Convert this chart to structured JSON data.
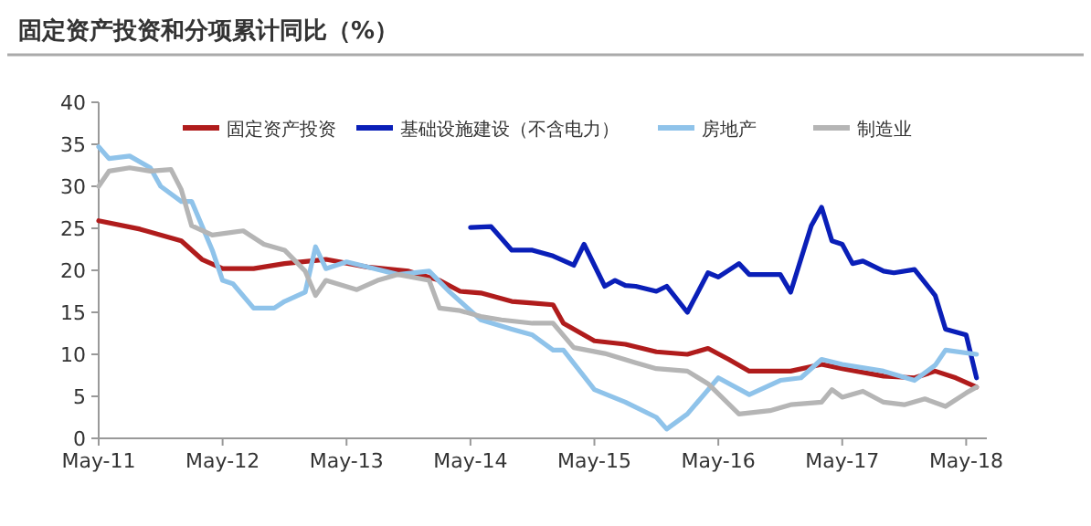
{
  "chart_data": {
    "type": "line",
    "title": "固定资产投资和分项累计同比（%）",
    "legend": "top",
    "marker": "none",
    "line_style": "solid",
    "grid": false,
    "xlim": [
      "2011-05",
      "2018-07"
    ],
    "xticks": [
      {
        "value": "2011-05",
        "label": "May-11"
      },
      {
        "value": "2012-05",
        "label": "May-12"
      },
      {
        "value": "2013-05",
        "label": "May-13"
      },
      {
        "value": "2014-05",
        "label": "May-14"
      },
      {
        "value": "2015-05",
        "label": "May-15"
      },
      {
        "value": "2016-05",
        "label": "May-16"
      },
      {
        "value": "2017-05",
        "label": "May-17"
      },
      {
        "value": "2018-05",
        "label": "May-18"
      }
    ],
    "ylim": [
      0,
      40
    ],
    "yticks": [
      0,
      5,
      10,
      15,
      20,
      25,
      30,
      35,
      40
    ],
    "series": [
      {
        "name": "固定资产投资",
        "color": "#b01c1c",
        "x": [
          "2011-05",
          "2011-09",
          "2012-01",
          "2012-03",
          "2012-05",
          "2012-08",
          "2012-11",
          "2013-03",
          "2013-07",
          "2013-11",
          "2014-02",
          "2014-04",
          "2014-06",
          "2014-09",
          "2014-11",
          "2015-01",
          "2015-02",
          "2015-05",
          "2015-08",
          "2015-11",
          "2016-02",
          "2016-04",
          "2016-06",
          "2016-08",
          "2016-12",
          "2017-03",
          "2017-05",
          "2017-09",
          "2017-12",
          "2018-02",
          "2018-04",
          "2018-06"
        ],
        "values": [
          25.9,
          24.9,
          23.5,
          21.3,
          20.2,
          20.2,
          20.8,
          21.3,
          20.4,
          19.9,
          18.8,
          17.5,
          17.3,
          16.3,
          16.1,
          15.9,
          13.7,
          11.6,
          11.2,
          10.3,
          10,
          10.7,
          9.4,
          8,
          8,
          8.8,
          8.3,
          7.4,
          7.2,
          8,
          7.2,
          6.1
        ]
      },
      {
        "name": "基础设施建设（不含电力）",
        "color": "#0a1fb8",
        "x": [
          "2014-05",
          "2014-07",
          "2014-09",
          "2014-11",
          "2015-01",
          "2015-03",
          "2015-04",
          "2015-06",
          "2015-07",
          "2015-08",
          "2015-09",
          "2015-11",
          "2015-12",
          "2016-02",
          "2016-04",
          "2016-05",
          "2016-07",
          "2016-08",
          "2016-11",
          "2016-12",
          "2017-02",
          "2017-03",
          "2017-04",
          "2017-05",
          "2017-06",
          "2017-07",
          "2017-09",
          "2017-10",
          "2017-12",
          "2018-02",
          "2018-03",
          "2018-05",
          "2018-06"
        ],
        "values": [
          25.1,
          25.2,
          22.4,
          22.4,
          21.7,
          20.6,
          23.1,
          18.1,
          18.8,
          18.2,
          18.1,
          17.5,
          18.1,
          15,
          19.7,
          19.2,
          20.8,
          19.5,
          19.5,
          17.4,
          25.3,
          27.5,
          23.5,
          23.1,
          20.8,
          21.1,
          19.9,
          19.7,
          20.1,
          17,
          13,
          12.3,
          7.2
        ]
      },
      {
        "name": "房地产",
        "color": "#8fc3ea",
        "x": [
          "2011-05",
          "2011-06",
          "2011-08",
          "2011-10",
          "2011-11",
          "2012-01",
          "2012-02",
          "2012-04",
          "2012-05",
          "2012-06",
          "2012-08",
          "2012-10",
          "2012-11",
          "2013-01",
          "2013-02",
          "2013-03",
          "2013-05",
          "2013-07",
          "2013-10",
          "2014-01",
          "2014-03",
          "2014-05",
          "2014-06",
          "2014-09",
          "2014-11",
          "2015-01",
          "2015-02",
          "2015-05",
          "2015-08",
          "2015-11",
          "2015-12",
          "2016-02",
          "2016-05",
          "2016-08",
          "2016-11",
          "2017-01",
          "2017-03",
          "2017-05",
          "2017-09",
          "2017-12",
          "2018-02",
          "2018-03",
          "2018-06"
        ],
        "values": [
          34.7,
          33.3,
          33.6,
          32.2,
          30,
          28.2,
          28.2,
          22.4,
          18.8,
          18.4,
          15.5,
          15.5,
          16.3,
          17.4,
          22.8,
          20.2,
          21,
          20.4,
          19.5,
          19.9,
          17.4,
          15.2,
          14.1,
          13,
          12.3,
          10.5,
          10.5,
          5.8,
          4.3,
          2.5,
          1.1,
          2.9,
          7.2,
          5.2,
          6.9,
          7.2,
          9.4,
          8.8,
          8,
          6.9,
          8.7,
          10.5,
          10
        ]
      },
      {
        "name": "制造业",
        "color": "#b5b5b5",
        "x": [
          "2011-05",
          "2011-06",
          "2011-08",
          "2011-10",
          "2011-12",
          "2012-01",
          "2012-02",
          "2012-04",
          "2012-07",
          "2012-09",
          "2012-11",
          "2013-01",
          "2013-02",
          "2013-03",
          "2013-06",
          "2013-08",
          "2013-10",
          "2014-01",
          "2014-02",
          "2014-04",
          "2014-06",
          "2014-08",
          "2014-11",
          "2015-01",
          "2015-03",
          "2015-06",
          "2015-09",
          "2015-11",
          "2016-02",
          "2016-04",
          "2016-07",
          "2016-10",
          "2016-12",
          "2017-03",
          "2017-04",
          "2017-05",
          "2017-07",
          "2017-09",
          "2017-11",
          "2018-01",
          "2018-03",
          "2018-05",
          "2018-06"
        ],
        "values": [
          30,
          31.8,
          32.2,
          31.8,
          32,
          29.6,
          25.3,
          24.2,
          24.7,
          23.1,
          22.4,
          19.9,
          17,
          18.8,
          17.7,
          18.8,
          19.5,
          18.8,
          15.5,
          15.2,
          14.5,
          14.1,
          13.7,
          13.7,
          10.8,
          10.1,
          9,
          8.3,
          8,
          6.5,
          2.9,
          3.3,
          4,
          4.3,
          5.8,
          4.9,
          5.6,
          4.3,
          4,
          4.7,
          3.8,
          5.4,
          6.1
        ]
      }
    ]
  }
}
